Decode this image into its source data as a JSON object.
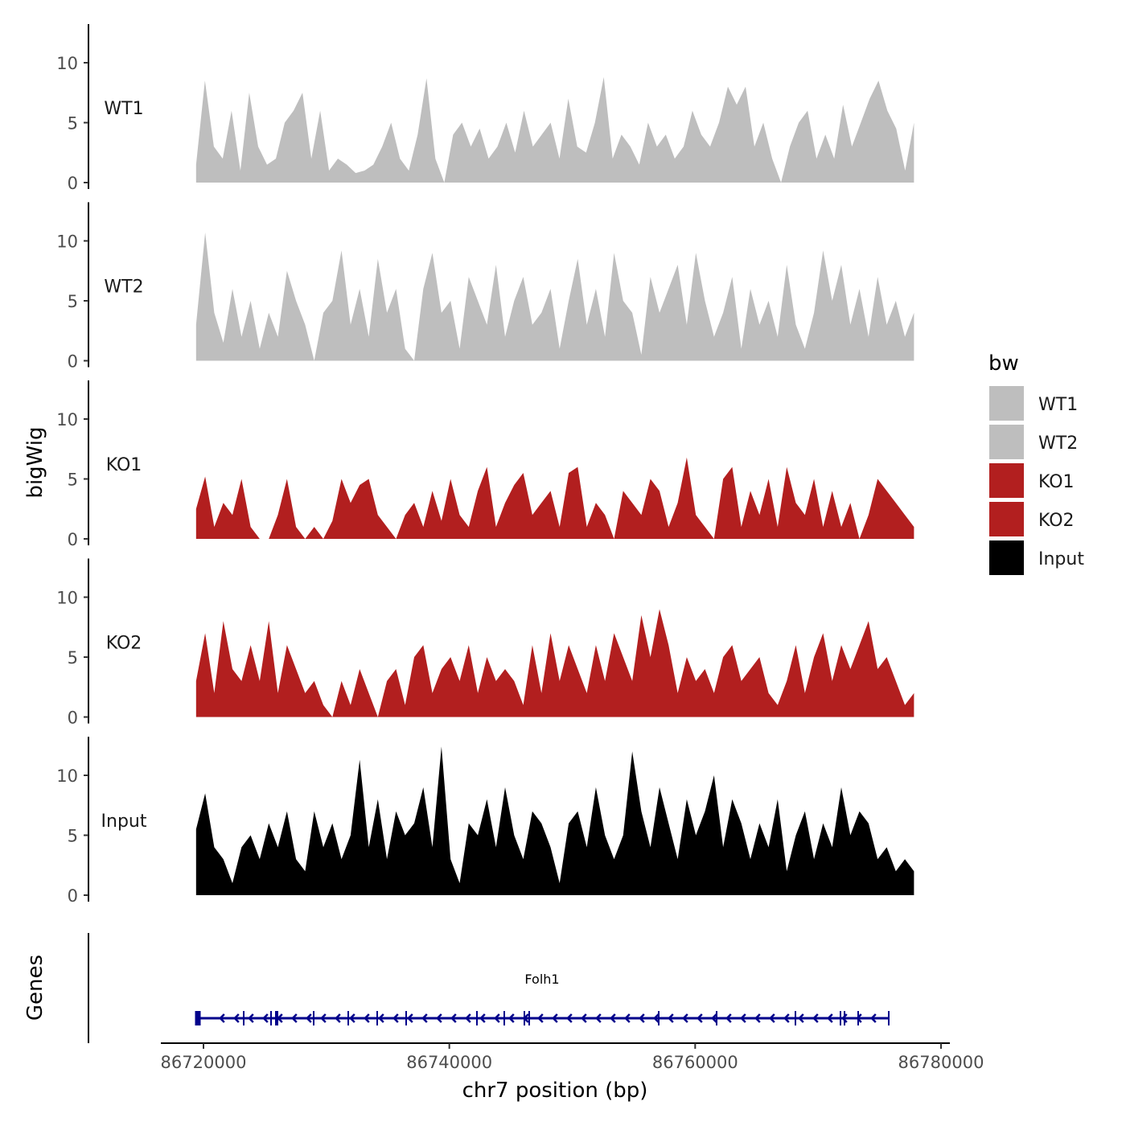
{
  "chart_data": {
    "type": "area",
    "ylabel": "bigWig",
    "xlabel": "chr7 position (bp)",
    "x_ticks": [
      86720000,
      86740000,
      86760000,
      86780000
    ],
    "x_tick_labels": [
      "86720000",
      "86740000",
      "86760000",
      "86780000"
    ],
    "xlim": [
      86714000,
      86780700
    ],
    "ylim": [
      0,
      13.5
    ],
    "y_ticks": [
      0,
      5,
      10
    ],
    "y_tick_labels": [
      "0",
      "5",
      "10"
    ],
    "legend": {
      "title": "bw",
      "placement": "right",
      "entries": [
        {
          "label": "WT1",
          "color": "#bebebe"
        },
        {
          "label": "WT2",
          "color": "#bebebe"
        },
        {
          "label": "KO1",
          "color": "#b21f1f"
        },
        {
          "label": "KO2",
          "color": "#b21f1f"
        },
        {
          "label": "Input",
          "color": "#000000"
        }
      ]
    },
    "x_start": 86719400,
    "x_end": 86777800,
    "series": [
      {
        "name": "WT1",
        "color": "#bebebe",
        "values": [
          1.5,
          8.5,
          3,
          2,
          6,
          1,
          7.5,
          3,
          1.5,
          2,
          5,
          6,
          7.5,
          2,
          6,
          1,
          2,
          1.5,
          0.8,
          1,
          1.5,
          3,
          5,
          2,
          1,
          4,
          8.7,
          2,
          0,
          4,
          5,
          3,
          4.5,
          2,
          3,
          5,
          2.5,
          6,
          3,
          4,
          5,
          2,
          7,
          3,
          2.5,
          5,
          8.8,
          2,
          4,
          3,
          1.5,
          5,
          3,
          4,
          2,
          3,
          6,
          4,
          3,
          5,
          8,
          6.5,
          8,
          3,
          5,
          2,
          0,
          3,
          5,
          6,
          2,
          4,
          2,
          6.5,
          3,
          5,
          7,
          8.5,
          6,
          4.5,
          1,
          5
        ]
      },
      {
        "name": "WT2",
        "color": "#bebebe",
        "values": [
          3,
          10.7,
          4,
          1.5,
          6,
          2,
          5,
          1,
          4,
          2,
          7.5,
          5,
          3,
          0,
          4,
          5,
          9.2,
          3,
          6,
          2,
          8.5,
          4,
          6,
          1,
          0,
          6,
          9,
          4,
          5,
          1,
          7,
          5,
          3,
          8,
          2,
          5,
          7,
          3,
          4,
          6,
          1,
          5,
          8.5,
          3,
          6,
          2,
          9,
          5,
          4,
          0.5,
          7,
          4,
          6,
          8,
          3,
          9,
          5,
          2,
          4,
          7,
          1,
          6,
          3,
          5,
          2,
          8,
          3,
          1,
          4,
          9.2,
          5,
          8,
          3,
          6,
          2,
          7,
          3,
          5,
          2,
          4
        ]
      },
      {
        "name": "KO1",
        "color": "#b21f1f",
        "values": [
          2.5,
          5.2,
          1,
          3,
          2,
          5,
          1,
          0,
          0,
          2,
          5,
          1,
          0,
          1,
          0,
          1.5,
          5,
          3,
          4.5,
          5,
          2,
          1,
          0,
          2,
          3,
          1,
          4,
          1.5,
          5,
          2,
          1,
          4,
          6,
          1,
          3,
          4.5,
          5.5,
          2,
          3,
          4,
          1,
          5.5,
          6,
          1,
          3,
          2,
          0,
          4,
          3,
          2,
          5,
          4,
          1,
          3,
          6.8,
          2,
          1,
          0,
          5,
          6,
          1,
          4,
          2,
          5,
          1,
          6,
          3,
          2,
          5,
          1,
          4,
          1,
          3,
          0,
          2,
          5,
          4,
          3,
          2,
          1
        ]
      },
      {
        "name": "KO2",
        "color": "#b21f1f",
        "values": [
          3,
          7,
          2,
          8,
          4,
          3,
          6,
          3,
          8,
          2,
          6,
          4,
          2,
          3,
          1,
          0,
          3,
          1,
          4,
          2,
          0,
          3,
          4,
          1,
          5,
          6,
          2,
          4,
          5,
          3,
          6,
          2,
          5,
          3,
          4,
          3,
          1,
          6,
          2,
          7,
          3,
          6,
          4,
          2,
          6,
          3,
          7,
          5,
          3,
          8.5,
          5,
          9,
          6,
          2,
          5,
          3,
          4,
          2,
          5,
          6,
          3,
          4,
          5,
          2,
          1,
          3,
          6,
          2,
          5,
          7,
          3,
          6,
          4,
          6,
          8,
          4,
          5,
          3,
          1,
          2
        ]
      },
      {
        "name": "Input",
        "color": "#000000",
        "values": [
          5.5,
          8.5,
          4,
          3,
          1,
          4,
          5,
          3,
          6,
          4,
          7,
          3,
          2,
          7,
          4,
          6,
          3,
          5,
          11.3,
          4,
          8,
          3,
          7,
          5,
          6,
          9,
          4,
          12.4,
          3,
          1,
          6,
          5,
          8,
          4,
          9,
          5,
          3,
          7,
          6,
          4,
          1,
          6,
          7,
          4,
          9,
          5,
          3,
          5,
          12,
          7,
          4,
          9,
          6,
          3,
          8,
          5,
          7,
          10,
          4,
          8,
          6,
          3,
          6,
          4,
          8,
          2,
          5,
          7,
          3,
          6,
          4,
          9,
          5,
          7,
          6,
          3,
          4,
          2,
          3,
          2
        ]
      }
    ],
    "genes": {
      "name": "Folh1",
      "strand": "-",
      "start": 86719400,
      "end": 86775748,
      "exons": [
        86719542,
        86723272,
        86725496,
        86725954,
        86728964,
        86731778,
        86734133,
        86736488,
        86742246,
        86744471,
        86746106,
        86746499,
        86757034,
        86761745,
        86768157,
        86771821,
        86772149,
        86773261,
        86775748
      ],
      "color": "#00008b",
      "ylabel": "Genes"
    }
  }
}
